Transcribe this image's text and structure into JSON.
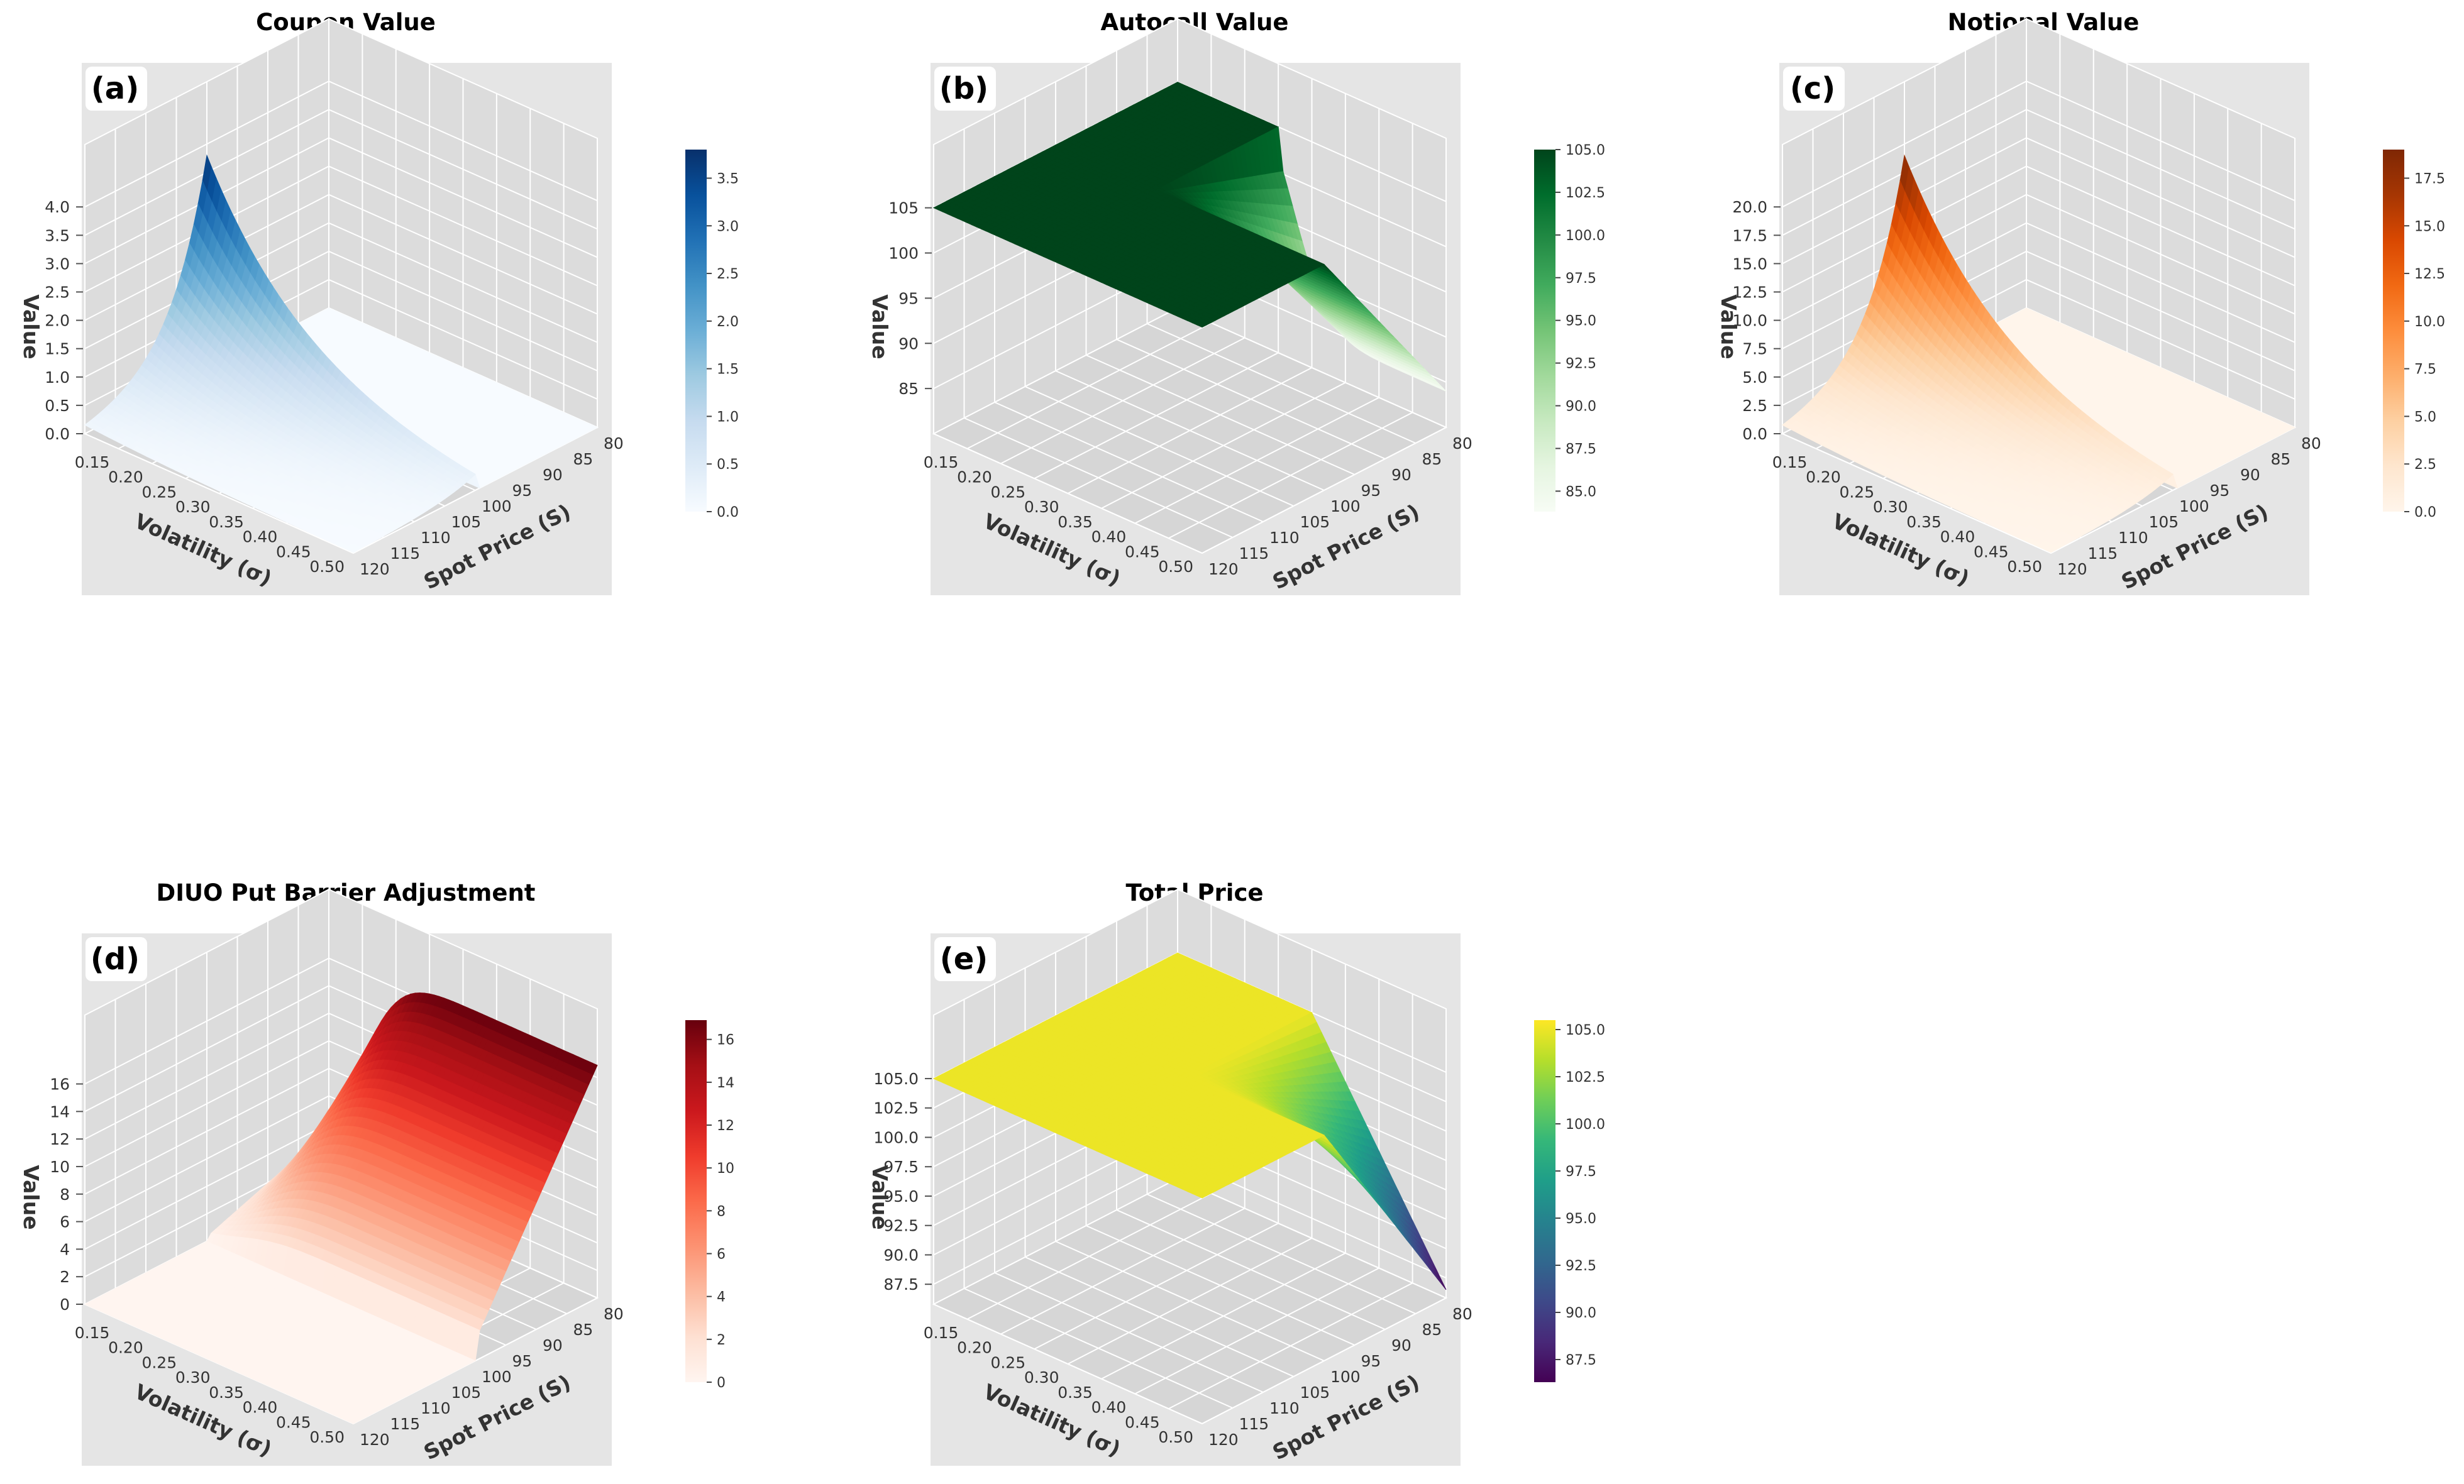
{
  "figure": {
    "layout": "2 rows x 3 columns, last cell empty"
  },
  "axis_names": {
    "x": "Spot Price (S)",
    "y": "Volatility (σ)",
    "z": "Value"
  },
  "chart_data": [
    {
      "type": "surface3d",
      "panel_label": "(a)",
      "title": "Coupon Value",
      "xlabel": "Spot Price (S)",
      "ylabel": "Volatility (σ)",
      "zlabel": "Value",
      "x_ticks": [
        "80",
        "85",
        "90",
        "95",
        "100",
        "105",
        "110",
        "115",
        "120"
      ],
      "y_ticks": [
        "0.15",
        "0.20",
        "0.25",
        "0.30",
        "0.35",
        "0.40",
        "0.45",
        "0.50"
      ],
      "z_ticks": [
        "0.0",
        "0.5",
        "1.0",
        "1.5",
        "2.0",
        "2.5",
        "3.0",
        "3.5",
        "4.0"
      ],
      "zlim": [
        0,
        5.1
      ],
      "colormap": "Blues",
      "colormap_stops": [
        "#f7fbff",
        "#deebf7",
        "#c6dbef",
        "#9ecae1",
        "#6baed6",
        "#4292c6",
        "#2171b5",
        "#08519c",
        "#08306b"
      ],
      "colorbar_ticks": [
        "0.0",
        "0.5",
        "1.0",
        "1.5",
        "2.0",
        "2.5",
        "3.0",
        "3.5"
      ],
      "colorbar_range": [
        0,
        3.8
      ],
      "surface_kind": "coupon",
      "peak": 3.8
    },
    {
      "type": "surface3d",
      "panel_label": "(b)",
      "title": "Autocall Value",
      "xlabel": "Spot Price (S)",
      "ylabel": "Volatility (σ)",
      "zlabel": "Value",
      "x_ticks": [
        "80",
        "85",
        "90",
        "95",
        "100",
        "105",
        "110",
        "115",
        "120"
      ],
      "y_ticks": [
        "0.15",
        "0.20",
        "0.25",
        "0.30",
        "0.35",
        "0.40",
        "0.45",
        "0.50"
      ],
      "z_ticks": [
        "85",
        "90",
        "95",
        "100",
        "105"
      ],
      "zlim": [
        80,
        112
      ],
      "colormap": "Greens",
      "colormap_stops": [
        "#f7fcf5",
        "#e5f5e0",
        "#c7e9c0",
        "#a1d99b",
        "#74c476",
        "#41ab5d",
        "#238b45",
        "#006d2c",
        "#00441b"
      ],
      "colorbar_ticks": [
        "85.0",
        "87.5",
        "90.0",
        "92.5",
        "95.0",
        "97.5",
        "100.0",
        "102.5",
        "105.0"
      ],
      "colorbar_range": [
        83.8,
        105.0
      ],
      "surface_kind": "autocall"
    },
    {
      "type": "surface3d",
      "panel_label": "(c)",
      "title": "Notional Value",
      "xlabel": "Spot Price (S)",
      "ylabel": "Volatility (σ)",
      "zlabel": "Value",
      "x_ticks": [
        "80",
        "85",
        "90",
        "95",
        "100",
        "105",
        "110",
        "115",
        "120"
      ],
      "y_ticks": [
        "0.15",
        "0.20",
        "0.25",
        "0.30",
        "0.35",
        "0.40",
        "0.45",
        "0.50"
      ],
      "z_ticks": [
        "0.0",
        "2.5",
        "5.0",
        "7.5",
        "10.0",
        "12.5",
        "15.0",
        "17.5",
        "20.0"
      ],
      "zlim": [
        0,
        25.5
      ],
      "colormap": "Oranges",
      "colormap_stops": [
        "#fff5eb",
        "#fee6ce",
        "#fdd0a2",
        "#fdae6b",
        "#fd8d3c",
        "#f16913",
        "#d94801",
        "#a63603",
        "#7f2704"
      ],
      "colorbar_ticks": [
        "0.0",
        "2.5",
        "5.0",
        "7.5",
        "10.0",
        "12.5",
        "15.0",
        "17.5"
      ],
      "colorbar_range": [
        0,
        19.0
      ],
      "surface_kind": "coupon",
      "peak": 19.0
    },
    {
      "type": "surface3d",
      "panel_label": "(d)",
      "title": "DIUO Put Barrier Adjustment",
      "xlabel": "Spot Price (S)",
      "ylabel": "Volatility (σ)",
      "zlabel": "Value",
      "x_ticks": [
        "80",
        "85",
        "90",
        "95",
        "100",
        "105",
        "110",
        "115",
        "120"
      ],
      "y_ticks": [
        "0.15",
        "0.20",
        "0.25",
        "0.30",
        "0.35",
        "0.40",
        "0.45",
        "0.50"
      ],
      "z_ticks": [
        "0",
        "2",
        "4",
        "6",
        "8",
        "10",
        "12",
        "14",
        "16"
      ],
      "zlim": [
        0,
        21
      ],
      "colormap": "Reds",
      "colormap_stops": [
        "#fff5f0",
        "#fee0d2",
        "#fcbba1",
        "#fc9272",
        "#fb6a4a",
        "#ef3b2c",
        "#cb181d",
        "#a50f15",
        "#67000d"
      ],
      "colorbar_ticks": [
        "0",
        "2",
        "4",
        "6",
        "8",
        "10",
        "12",
        "14",
        "16"
      ],
      "colorbar_range": [
        0,
        16.9
      ],
      "surface_kind": "diuo"
    },
    {
      "type": "surface3d",
      "panel_label": "(e)",
      "title": "Total Price",
      "xlabel": "Spot Price (S)",
      "ylabel": "Volatility (σ)",
      "zlabel": "Value",
      "x_ticks": [
        "80",
        "85",
        "90",
        "95",
        "100",
        "105",
        "110",
        "115",
        "120"
      ],
      "y_ticks": [
        "0.15",
        "0.20",
        "0.25",
        "0.30",
        "0.35",
        "0.40",
        "0.45",
        "0.50"
      ],
      "z_ticks": [
        "87.5",
        "90.0",
        "92.5",
        "95.0",
        "97.5",
        "100.0",
        "102.5",
        "105.0"
      ],
      "zlim": [
        85.8,
        110.4
      ],
      "colormap": "viridis",
      "colormap_stops": [
        "#440154",
        "#482878",
        "#3e4989",
        "#31688e",
        "#26828e",
        "#1f9e89",
        "#35b779",
        "#6ece58",
        "#b5de2b",
        "#fde725"
      ],
      "colorbar_ticks": [
        "87.5",
        "90.0",
        "92.5",
        "95.0",
        "97.5",
        "100.0",
        "102.5",
        "105.0"
      ],
      "colorbar_range": [
        86.3,
        105.5
      ],
      "surface_kind": "total"
    }
  ]
}
